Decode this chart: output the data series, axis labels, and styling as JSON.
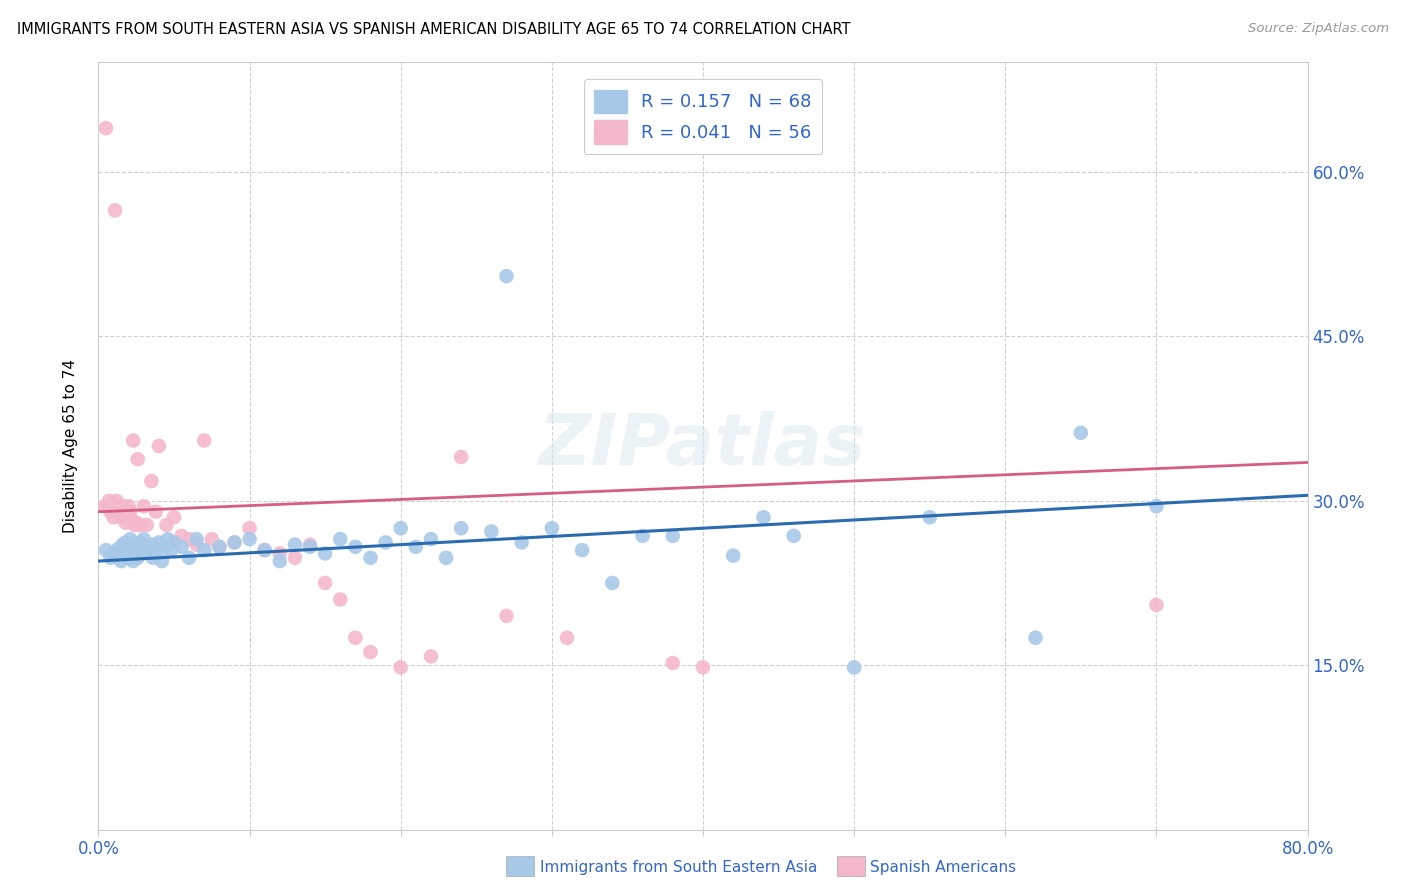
{
  "title": "IMMIGRANTS FROM SOUTH EASTERN ASIA VS SPANISH AMERICAN DISABILITY AGE 65 TO 74 CORRELATION CHART",
  "source": "Source: ZipAtlas.com",
  "ylabel": "Disability Age 65 to 74",
  "xlim": [
    0.0,
    0.8
  ],
  "ylim": [
    0.0,
    0.7
  ],
  "legend_r1": "R = 0.157",
  "legend_n1": "N = 68",
  "legend_r2": "R = 0.041",
  "legend_n2": "N = 56",
  "blue_color": "#a8c8e8",
  "pink_color": "#f4b8cc",
  "blue_line_color": "#2b6cb0",
  "pink_line_color": "#d45f80",
  "blue_scatter_x": [
    0.005,
    0.008,
    0.01,
    0.012,
    0.013,
    0.015,
    0.016,
    0.017,
    0.018,
    0.019,
    0.02,
    0.021,
    0.022,
    0.023,
    0.024,
    0.025,
    0.026,
    0.027,
    0.028,
    0.03,
    0.032,
    0.033,
    0.035,
    0.036,
    0.038,
    0.04,
    0.042,
    0.044,
    0.046,
    0.048,
    0.05,
    0.055,
    0.06,
    0.065,
    0.07,
    0.08,
    0.09,
    0.1,
    0.11,
    0.12,
    0.13,
    0.14,
    0.15,
    0.16,
    0.17,
    0.18,
    0.19,
    0.2,
    0.21,
    0.22,
    0.23,
    0.24,
    0.26,
    0.28,
    0.3,
    0.32,
    0.34,
    0.36,
    0.38,
    0.42,
    0.44,
    0.46,
    0.27,
    0.5,
    0.62,
    0.65,
    0.7,
    0.55
  ],
  "blue_scatter_y": [
    0.255,
    0.248,
    0.252,
    0.25,
    0.256,
    0.245,
    0.26,
    0.258,
    0.262,
    0.255,
    0.248,
    0.265,
    0.258,
    0.245,
    0.252,
    0.26,
    0.248,
    0.255,
    0.262,
    0.265,
    0.258,
    0.252,
    0.26,
    0.248,
    0.255,
    0.262,
    0.245,
    0.258,
    0.265,
    0.255,
    0.262,
    0.258,
    0.248,
    0.265,
    0.255,
    0.258,
    0.262,
    0.265,
    0.255,
    0.245,
    0.26,
    0.258,
    0.252,
    0.265,
    0.258,
    0.248,
    0.262,
    0.275,
    0.258,
    0.265,
    0.248,
    0.275,
    0.272,
    0.262,
    0.275,
    0.255,
    0.225,
    0.268,
    0.268,
    0.25,
    0.285,
    0.268,
    0.505,
    0.148,
    0.175,
    0.362,
    0.295,
    0.285
  ],
  "pink_scatter_x": [
    0.004,
    0.005,
    0.006,
    0.007,
    0.008,
    0.009,
    0.01,
    0.011,
    0.012,
    0.013,
    0.014,
    0.015,
    0.016,
    0.017,
    0.018,
    0.019,
    0.02,
    0.021,
    0.022,
    0.023,
    0.024,
    0.025,
    0.026,
    0.027,
    0.028,
    0.03,
    0.032,
    0.035,
    0.038,
    0.04,
    0.045,
    0.05,
    0.055,
    0.06,
    0.065,
    0.07,
    0.075,
    0.08,
    0.09,
    0.1,
    0.11,
    0.12,
    0.13,
    0.14,
    0.15,
    0.16,
    0.17,
    0.18,
    0.2,
    0.22,
    0.24,
    0.27,
    0.31,
    0.38,
    0.4,
    0.7
  ],
  "pink_scatter_y": [
    0.295,
    0.64,
    0.295,
    0.3,
    0.29,
    0.295,
    0.285,
    0.565,
    0.3,
    0.29,
    0.295,
    0.285,
    0.29,
    0.295,
    0.28,
    0.285,
    0.295,
    0.29,
    0.282,
    0.355,
    0.278,
    0.28,
    0.338,
    0.278,
    0.278,
    0.295,
    0.278,
    0.318,
    0.29,
    0.35,
    0.278,
    0.285,
    0.268,
    0.265,
    0.26,
    0.355,
    0.265,
    0.258,
    0.262,
    0.275,
    0.255,
    0.252,
    0.248,
    0.26,
    0.225,
    0.21,
    0.175,
    0.162,
    0.148,
    0.158,
    0.34,
    0.195,
    0.175,
    0.152,
    0.148,
    0.205
  ],
  "blue_trend_x": [
    0.0,
    0.8
  ],
  "blue_trend_y": [
    0.245,
    0.305
  ],
  "pink_trend_x": [
    0.0,
    0.8
  ],
  "pink_trend_y": [
    0.29,
    0.335
  ]
}
